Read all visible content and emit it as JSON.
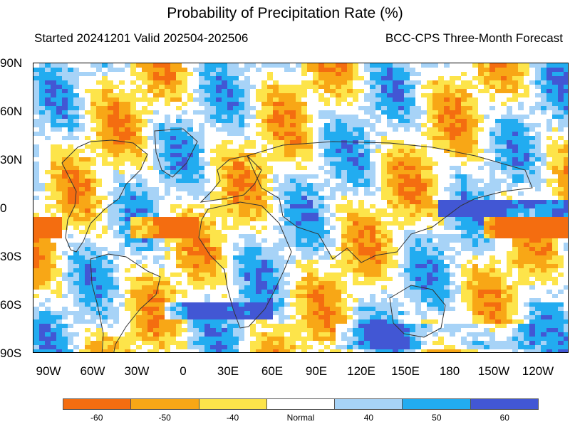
{
  "title": "Probability of Precipitation Rate (%)",
  "subtitle_left": "Started 20241201  Valid 202504-202506",
  "subtitle_right": "BCC-CPS Three-Month Forecast",
  "lat_labels": [
    "90N",
    "60N",
    "30N",
    "0",
    "30S",
    "60S",
    "90S"
  ],
  "lon_labels": [
    "90W",
    "60W",
    "30W",
    "0",
    "30E",
    "60E",
    "90E",
    "120E",
    "150E",
    "180",
    "150W",
    "120W"
  ],
  "legend": {
    "categories": [
      {
        "label": "-60",
        "color": "#f46d10"
      },
      {
        "label": "-50",
        "color": "#f8a716"
      },
      {
        "label": "-40",
        "color": "#fde44a"
      },
      {
        "label": "Normal",
        "color": "#ffffff"
      },
      {
        "label": "40",
        "color": "#a7d3f7"
      },
      {
        "label": "50",
        "color": "#22acf0"
      },
      {
        "label": "60",
        "color": "#4257d4"
      }
    ]
  }
}
